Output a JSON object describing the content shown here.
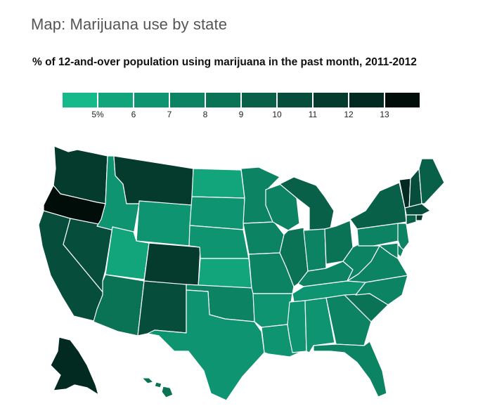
{
  "header": {
    "title": "Map: Marijuana use by state",
    "subtitle": "% of 12-and-over population using marijuana in the past month, 2011-2012"
  },
  "legend": {
    "bins": [
      {
        "color": "#16b98a",
        "label": ""
      },
      {
        "color": "#12a57c",
        "label": "5%"
      },
      {
        "color": "#0f9471",
        "label": "6"
      },
      {
        "color": "#0c8464",
        "label": "7"
      },
      {
        "color": "#0a7356",
        "label": "8"
      },
      {
        "color": "#086049",
        "label": "9"
      },
      {
        "color": "#064e3b",
        "label": "10"
      },
      {
        "color": "#053b2d",
        "label": "11"
      },
      {
        "color": "#032a20",
        "label": "12"
      },
      {
        "color": "#010d09",
        "label": "13"
      }
    ]
  },
  "map_data": {
    "type": "choropleth",
    "states": [
      {
        "code": "WA",
        "bin": 7
      },
      {
        "code": "OR",
        "bin": 9
      },
      {
        "code": "CA",
        "bin": 6
      },
      {
        "code": "NV",
        "bin": 6
      },
      {
        "code": "ID",
        "bin": 2
      },
      {
        "code": "MT",
        "bin": 7
      },
      {
        "code": "WY",
        "bin": 2
      },
      {
        "code": "UT",
        "bin": 1
      },
      {
        "code": "CO",
        "bin": 7
      },
      {
        "code": "AZ",
        "bin": 4
      },
      {
        "code": "NM",
        "bin": 6
      },
      {
        "code": "ND",
        "bin": 1
      },
      {
        "code": "SD",
        "bin": 2
      },
      {
        "code": "NE",
        "bin": 2
      },
      {
        "code": "KS",
        "bin": 1
      },
      {
        "code": "OK",
        "bin": 3
      },
      {
        "code": "TX",
        "bin": 2
      },
      {
        "code": "MN",
        "bin": 3
      },
      {
        "code": "IA",
        "bin": 3
      },
      {
        "code": "MO",
        "bin": 3
      },
      {
        "code": "AR",
        "bin": 2
      },
      {
        "code": "LA",
        "bin": 2
      },
      {
        "code": "WI",
        "bin": 3
      },
      {
        "code": "IL",
        "bin": 4
      },
      {
        "code": "MI",
        "bin": 5
      },
      {
        "code": "IN",
        "bin": 3
      },
      {
        "code": "OH",
        "bin": 4
      },
      {
        "code": "KY",
        "bin": 3
      },
      {
        "code": "TN",
        "bin": 2
      },
      {
        "code": "MS",
        "bin": 2
      },
      {
        "code": "AL",
        "bin": 2
      },
      {
        "code": "GA",
        "bin": 3
      },
      {
        "code": "FL",
        "bin": 3
      },
      {
        "code": "SC",
        "bin": 4
      },
      {
        "code": "NC",
        "bin": 3
      },
      {
        "code": "VA",
        "bin": 3
      },
      {
        "code": "WV",
        "bin": 3
      },
      {
        "code": "PA",
        "bin": 3
      },
      {
        "code": "NY",
        "bin": 5
      },
      {
        "code": "VT",
        "bin": 8
      },
      {
        "code": "NH",
        "bin": 6
      },
      {
        "code": "ME",
        "bin": 5
      },
      {
        "code": "MA",
        "bin": 6
      },
      {
        "code": "RI",
        "bin": 7
      },
      {
        "code": "CT",
        "bin": 5
      },
      {
        "code": "NJ",
        "bin": 3
      },
      {
        "code": "DE",
        "bin": 3
      },
      {
        "code": "MD",
        "bin": 3
      },
      {
        "code": "AK",
        "bin": 8
      },
      {
        "code": "HI",
        "bin": 4
      }
    ]
  }
}
